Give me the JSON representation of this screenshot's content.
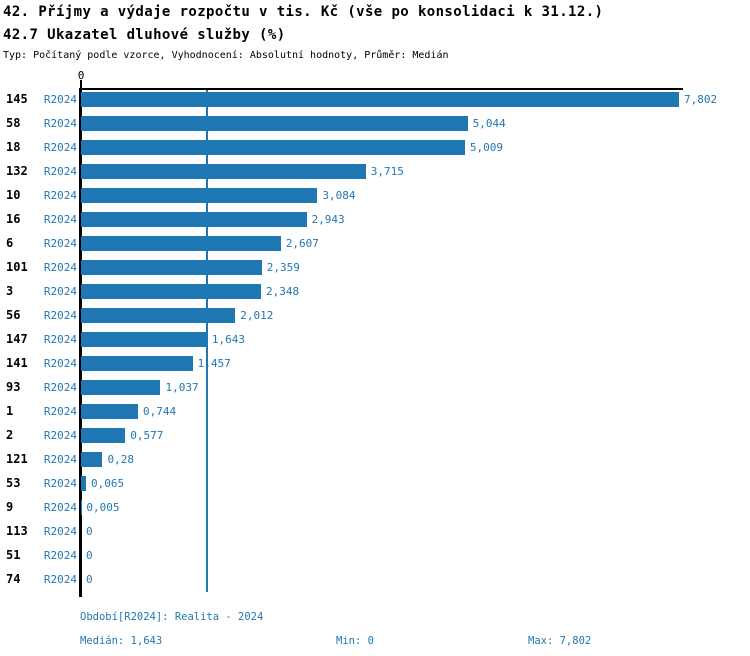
{
  "header": {
    "title_line1": "42. Příjmy a výdaje rozpočtu v tis. Kč (vše po konsolidaci k 31.12.)",
    "title_line2": "42.7 Ukazatel dluhové služby (%)",
    "subtitle": "Typ: Počítaný podle vzorce, Vyhodnocení: Absolutní hodnoty, Průměr: Medián"
  },
  "chart_data": {
    "type": "bar",
    "orientation": "horizontal",
    "title": "42.7 Ukazatel dluhové služby (%)",
    "series_label": "R2024",
    "categories": [
      "145",
      "58",
      "18",
      "132",
      "10",
      "16",
      "6",
      "101",
      "3",
      "56",
      "147",
      "141",
      "93",
      "1",
      "2",
      "121",
      "53",
      "9",
      "113",
      "51",
      "74"
    ],
    "values": [
      7.802,
      5.044,
      5.009,
      3.715,
      3.084,
      2.943,
      2.607,
      2.359,
      2.348,
      2.012,
      1.643,
      1.457,
      1.037,
      0.744,
      0.577,
      0.28,
      0.065,
      0.005,
      0,
      0,
      0
    ],
    "value_labels": [
      "7,802",
      "5,044",
      "5,009",
      "3,715",
      "3,084",
      "2,943",
      "2,607",
      "2,359",
      "2,348",
      "2,012",
      "1,643",
      "1,457",
      "1,037",
      "0,744",
      "0,577",
      "0,28",
      "0,065",
      "0,005",
      "0",
      "0",
      "0"
    ],
    "x_axis": {
      "tick_labels": [
        "0"
      ],
      "range": [
        0,
        7.802
      ]
    },
    "median_value": 1.643,
    "grid": false,
    "legend": false
  },
  "footer": {
    "period_text": "Období[R2024]: Realita - 2024",
    "median_text": "Medián: 1,643",
    "min_text": "Min: 0",
    "max_text": "Max: 7,802"
  },
  "colors": {
    "bar_blue": "#1f77b4",
    "label_blue": "#1f77b4",
    "median_line_blue": "#1f77b4",
    "axis_black": "#000000",
    "background": "#ffffff"
  }
}
